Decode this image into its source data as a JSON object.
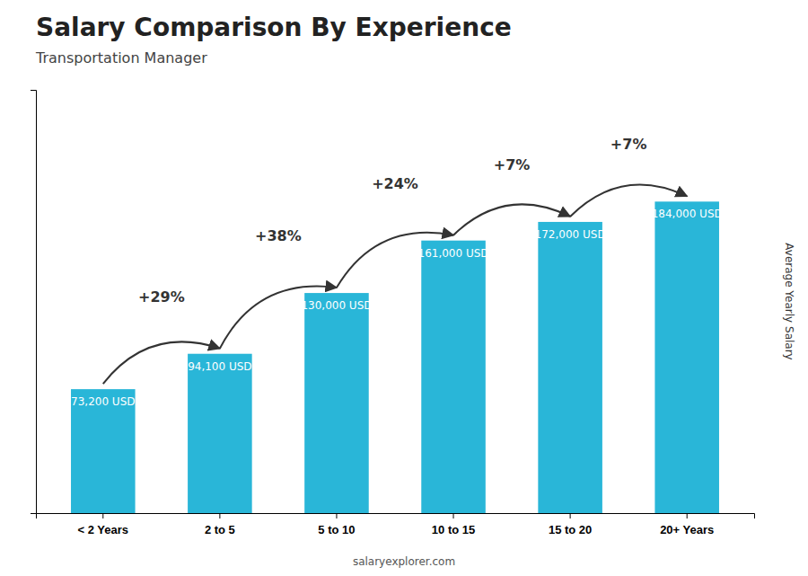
{
  "chart_data": {
    "type": "bar",
    "title": "Salary Comparison By Experience",
    "subtitle": "Transportation Manager",
    "ylabel": "Average Yearly Salary",
    "footer": "salaryexplorer.com",
    "categories": [
      "< 2 Years",
      "2 to 5",
      "5 to 10",
      "10 to 15",
      "15 to 20",
      "20+ Years"
    ],
    "values": [
      73200,
      94100,
      130000,
      161000,
      172000,
      184000
    ],
    "value_labels": [
      "73,200 USD",
      "94,100 USD",
      "130,000 USD",
      "161,000 USD",
      "172,000 USD",
      "184,000 USD"
    ],
    "data_labels": true,
    "annotations": [
      "+29%",
      "+38%",
      "+24%",
      "+7%",
      "+7%"
    ],
    "color": "#29b6d8",
    "ylim": [
      0,
      250000
    ],
    "tick_labels": "x",
    "grid": false
  }
}
